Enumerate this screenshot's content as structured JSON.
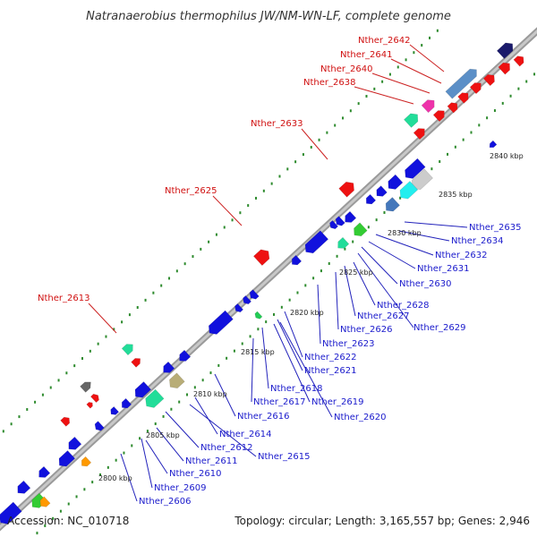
{
  "title": "Natranaerobius thermophilus JW/NM-WN-LF, complete genome",
  "accession": "Accession: NC_010718",
  "topology": "Topology: circular; Length: 3,165,557 bp; Genes: 2,946",
  "colors": {
    "backbone": "#8c8c8c",
    "ticks": "#1f8a1f",
    "fwd_label": "#d01010",
    "rev_label": "#1a1acc",
    "fwd_gene": "#ee1111",
    "rev_gene": "#1111dd"
  },
  "kbp_marks": [
    "2800 kbp",
    "2805 kbp",
    "2810 kbp",
    "2815 kbp",
    "2820 kbp",
    "2825 kbp",
    "2830 kbp",
    "2835 kbp",
    "2840 kbp"
  ],
  "forward_labels": [
    "Nther_2642",
    "Nther_2641",
    "Nther_2640",
    "Nther_2638",
    "Nther_2633",
    "Nther_2625",
    "Nther_2613"
  ],
  "reverse_labels": [
    "Nther_2635",
    "Nther_2634",
    "Nther_2632",
    "Nther_2631",
    "Nther_2630",
    "Nther_2628",
    "Nther_2627",
    "Nther_2629",
    "Nther_2626",
    "Nther_2623",
    "Nther_2622",
    "Nther_2621",
    "Nther_2618",
    "Nther_2619",
    "Nther_2617",
    "Nther_2620",
    "Nther_2616",
    "Nther_2614",
    "Nther_2612",
    "Nther_2615",
    "Nther_2611",
    "Nther_2610",
    "Nther_2609",
    "Nther_2606"
  ]
}
